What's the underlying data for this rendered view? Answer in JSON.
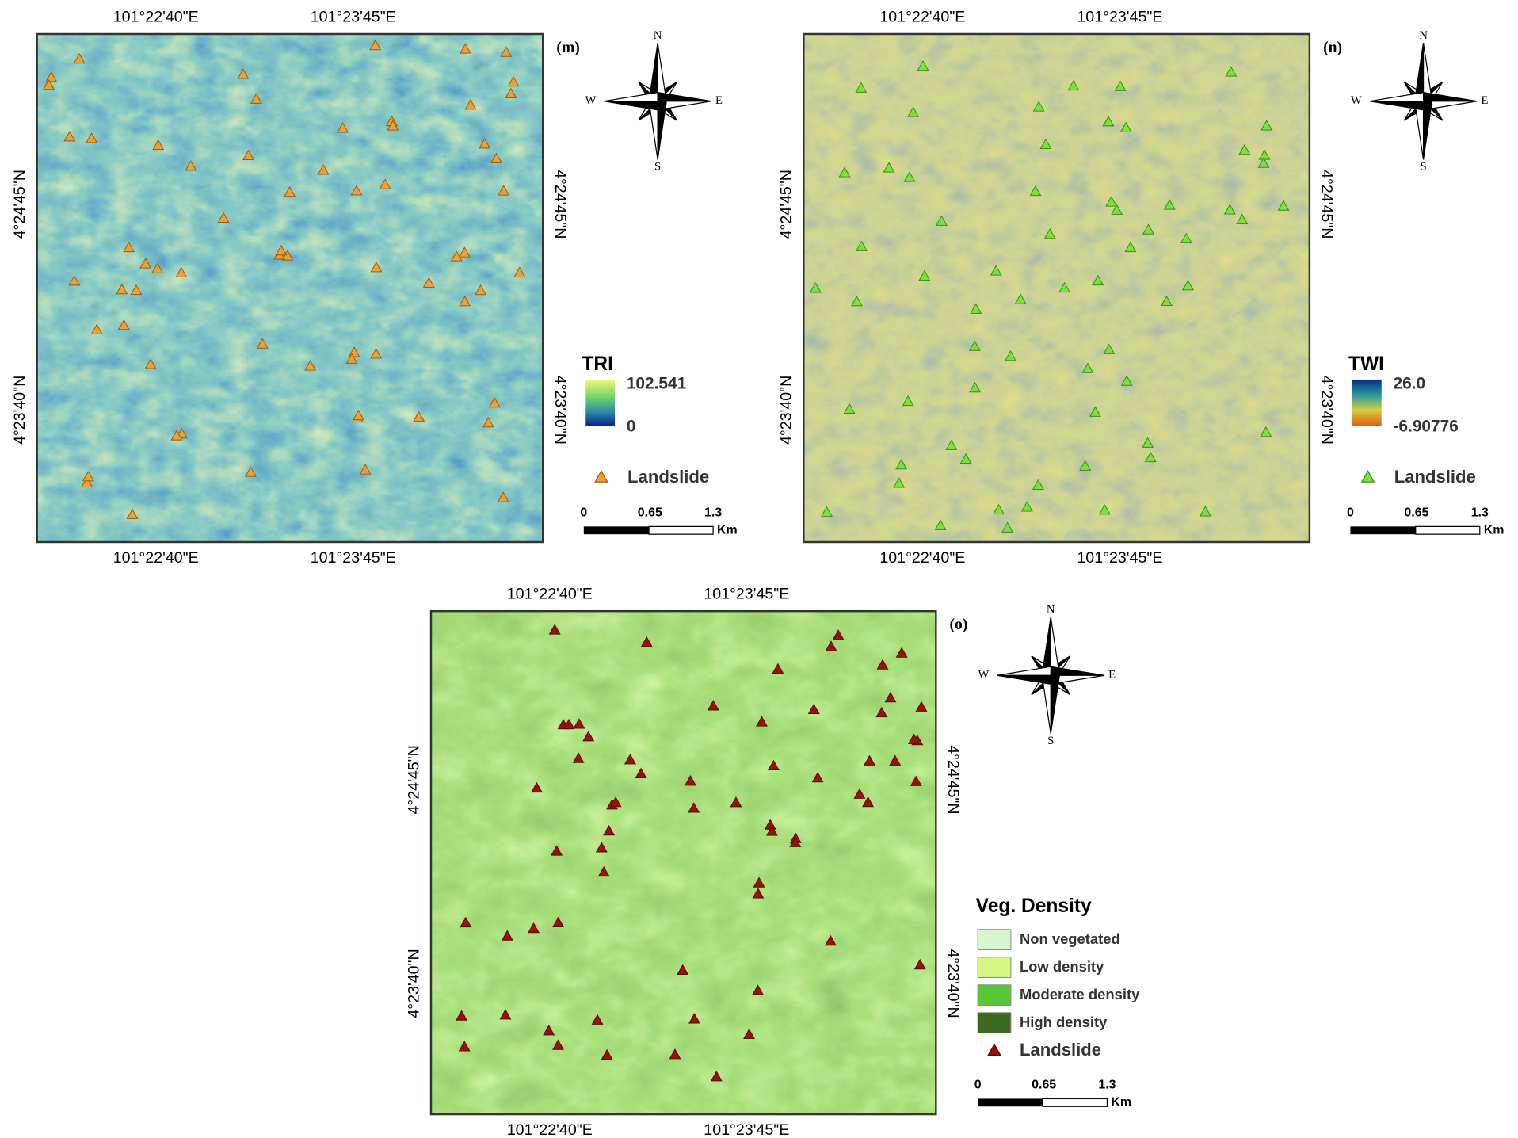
{
  "panels": [
    {
      "label": "(m)",
      "top_axis": [
        "101°22'40\"E",
        "101°23'45\"E"
      ],
      "bottom_axis": [
        "101°22'40\"E",
        "101°23'45\"E"
      ],
      "left_axis": [
        "4°24'45\"N",
        "4°23'40\"N"
      ],
      "right_axis": [
        "4°24'45\"N",
        "4°23'40\"N"
      ],
      "compass": [
        "N",
        "S",
        "W",
        "E"
      ],
      "legend": {
        "title": "TRI",
        "max": "102.541",
        "min": "0",
        "point": "Landslide"
      },
      "scale": {
        "ticks": [
          "0",
          "0.65",
          "1.3"
        ],
        "unit": "Km"
      }
    },
    {
      "label": "(n)",
      "top_axis": [
        "101°22'40\"E",
        "101°23'45\"E"
      ],
      "bottom_axis": [
        "101°22'40\"E",
        "101°23'45\"E"
      ],
      "left_axis": [
        "4°24'45\"N",
        "4°23'40\"N"
      ],
      "right_axis": [
        "4°24'45\"N",
        "4°23'40\"N"
      ],
      "compass": [
        "N",
        "S",
        "W",
        "E"
      ],
      "legend": {
        "title": "TWI",
        "max": "26.0",
        "min": "-6.90776",
        "point": "Landslide"
      },
      "scale": {
        "ticks": [
          "0",
          "0.65",
          "1.3"
        ],
        "unit": "Km"
      }
    },
    {
      "label": "(o)",
      "top_axis": [
        "101°22'40\"E",
        "101°23'45\"E"
      ],
      "bottom_axis": [
        "101°22'40\"E",
        "101°23'45\"E"
      ],
      "left_axis": [
        "4°24'45\"N",
        "4°23'40\"N"
      ],
      "right_axis": [
        "4°24'45\"N",
        "4°23'40\"N"
      ],
      "compass": [
        "N",
        "S",
        "W",
        "E"
      ],
      "legend": {
        "title": "Veg. Density",
        "classes": [
          {
            "label": "Non vegetated",
            "color": "#d6f6d0"
          },
          {
            "label": "Low density",
            "color": "#d4f585"
          },
          {
            "label": "Moderate density",
            "color": "#58c636"
          },
          {
            "label": "High density",
            "color": "#3b6b1f"
          }
        ],
        "point": "Landslide"
      },
      "scale": {
        "ticks": [
          "0",
          "0.65",
          "1.3"
        ],
        "unit": "Km"
      }
    }
  ]
}
